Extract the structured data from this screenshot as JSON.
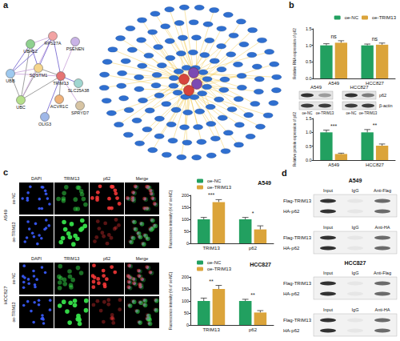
{
  "panel_labels": [
    "a",
    "b",
    "c",
    "d"
  ],
  "string_network": {
    "nodes": [
      "UBA52",
      "RPS27A",
      "PSENEN",
      "UBB",
      "SQSTM1",
      "TRIM13",
      "SLC25A38",
      "UBC",
      "ACVR1C",
      "SPRYD7",
      "OLIG3"
    ],
    "edges": [
      [
        0,
        3
      ],
      [
        0,
        7
      ],
      [
        0,
        1
      ],
      [
        0,
        4
      ],
      [
        3,
        7
      ],
      [
        3,
        4
      ],
      [
        3,
        1
      ],
      [
        7,
        4
      ],
      [
        7,
        1
      ],
      [
        1,
        4
      ],
      [
        5,
        4
      ],
      [
        5,
        2
      ],
      [
        5,
        6
      ],
      [
        5,
        8
      ],
      [
        5,
        9
      ],
      [
        5,
        10
      ],
      [
        5,
        7
      ],
      [
        5,
        3
      ],
      [
        5,
        1
      ]
    ]
  },
  "chart_data": [
    {
      "type": "bar",
      "ylabel": "Relative RNA expression of p62",
      "categories": [
        "A549",
        "HCC827"
      ],
      "series": [
        {
          "name": "oe-NC",
          "color": "#22a060",
          "values": [
            1.0,
            1.0
          ],
          "errors": [
            0.05,
            0.04
          ]
        },
        {
          "name": "oe-TRIM13",
          "color": "#dba43a",
          "values": [
            1.08,
            1.02
          ],
          "errors": [
            0.06,
            0.05
          ]
        }
      ],
      "annotations": [
        "ns",
        "ns"
      ],
      "ylim": [
        0,
        1.5
      ],
      "yticks": [
        {
          "value": 0,
          "label": "0.0"
        },
        0.5,
        {
          "value": 1,
          "label": "1.0"
        },
        1.5
      ],
      "grid": false,
      "legend": "upper right"
    },
    {
      "type": "bar",
      "ylabel": "Relative protein expression of p62",
      "categories": [
        "A549",
        "HCC827"
      ],
      "series": [
        {
          "name": "oe-NC",
          "color": "#22a060",
          "values": [
            1.0,
            1.0
          ],
          "errors": [
            0.08,
            0.1
          ]
        },
        {
          "name": "oe-TRIM13",
          "color": "#dba43a",
          "values": [
            0.22,
            0.52
          ],
          "errors": [
            0.03,
            0.06
          ]
        }
      ],
      "annotations": [
        "***",
        "**"
      ],
      "ylim": [
        0,
        1.5
      ],
      "yticks": [
        {
          "value": 0,
          "label": "0.0"
        },
        0.5,
        {
          "value": 1,
          "label": "1.0"
        },
        1.5
      ],
      "grid": false
    },
    {
      "type": "bar",
      "title": "A549",
      "ylabel": "Fluorescence intensity (% of oe-NC)",
      "categories": [
        "TRIM13",
        "p62"
      ],
      "series": [
        {
          "name": "oe-NC",
          "color": "#22a060",
          "values": [
            100,
            100
          ],
          "errors": [
            8,
            8
          ]
        },
        {
          "name": "oe-TRIM13",
          "color": "#dba43a",
          "values": [
            172,
            58
          ],
          "errors": [
            10,
            15
          ]
        }
      ],
      "annotations": [
        "***",
        "*"
      ],
      "ylim": [
        0,
        200
      ],
      "yticks": [
        0,
        50,
        100,
        150,
        200
      ],
      "grid": false,
      "legend": "upper left"
    },
    {
      "type": "bar",
      "title": "HCC827",
      "ylabel": "Fluorescence intensity (% of oe-NC)",
      "categories": [
        "TRIM13",
        "p62"
      ],
      "series": [
        {
          "name": "oe-NC",
          "color": "#22a060",
          "values": [
            100,
            100
          ],
          "errors": [
            12,
            7
          ]
        },
        {
          "name": "oe-TRIM13",
          "color": "#dba43a",
          "values": [
            150,
            52
          ],
          "errors": [
            15,
            8
          ]
        }
      ],
      "annotations": [
        "**",
        "**"
      ],
      "ylim": [
        0,
        200
      ],
      "yticks": [
        0,
        50,
        100,
        150,
        200
      ],
      "grid": false,
      "legend": "upper left"
    }
  ],
  "western_blot": {
    "cell_lines": [
      "A549",
      "HCC827"
    ],
    "lanes": [
      "oe-NC",
      "oe-TRIM13",
      "oe-NC",
      "oe-TRIM13"
    ],
    "rows": [
      "p62",
      "β-actin"
    ]
  },
  "immunofluorescence": {
    "channels": [
      "DAPI",
      "TRIM13",
      "p62",
      "Merge"
    ],
    "rows": [
      "oe-NC",
      "oe-TRIM13"
    ],
    "cell_lines": [
      "A549",
      "HCC827"
    ]
  },
  "co_ip": [
    {
      "title": "A549",
      "blocks": [
        {
          "columns": [
            "Input",
            "IgG",
            "Anti-Flag"
          ],
          "rows": [
            "Flag-TRIM13",
            "HA-p62"
          ]
        },
        {
          "columns": [
            "Input",
            "IgG",
            "Anti-HA"
          ],
          "rows": [
            "Flag-TRIM13",
            "HA-p62"
          ]
        }
      ]
    },
    {
      "title": "HCC827",
      "blocks": [
        {
          "columns": [
            "Input",
            "IgG",
            "Anti-Flag"
          ],
          "rows": [
            "Flag-TRIM13",
            "HA-p62"
          ]
        },
        {
          "columns": [
            "Input",
            "IgG",
            "Anti-HA"
          ],
          "rows": [
            "Flag-TRIM13",
            "HA-p62"
          ]
        }
      ]
    }
  ]
}
